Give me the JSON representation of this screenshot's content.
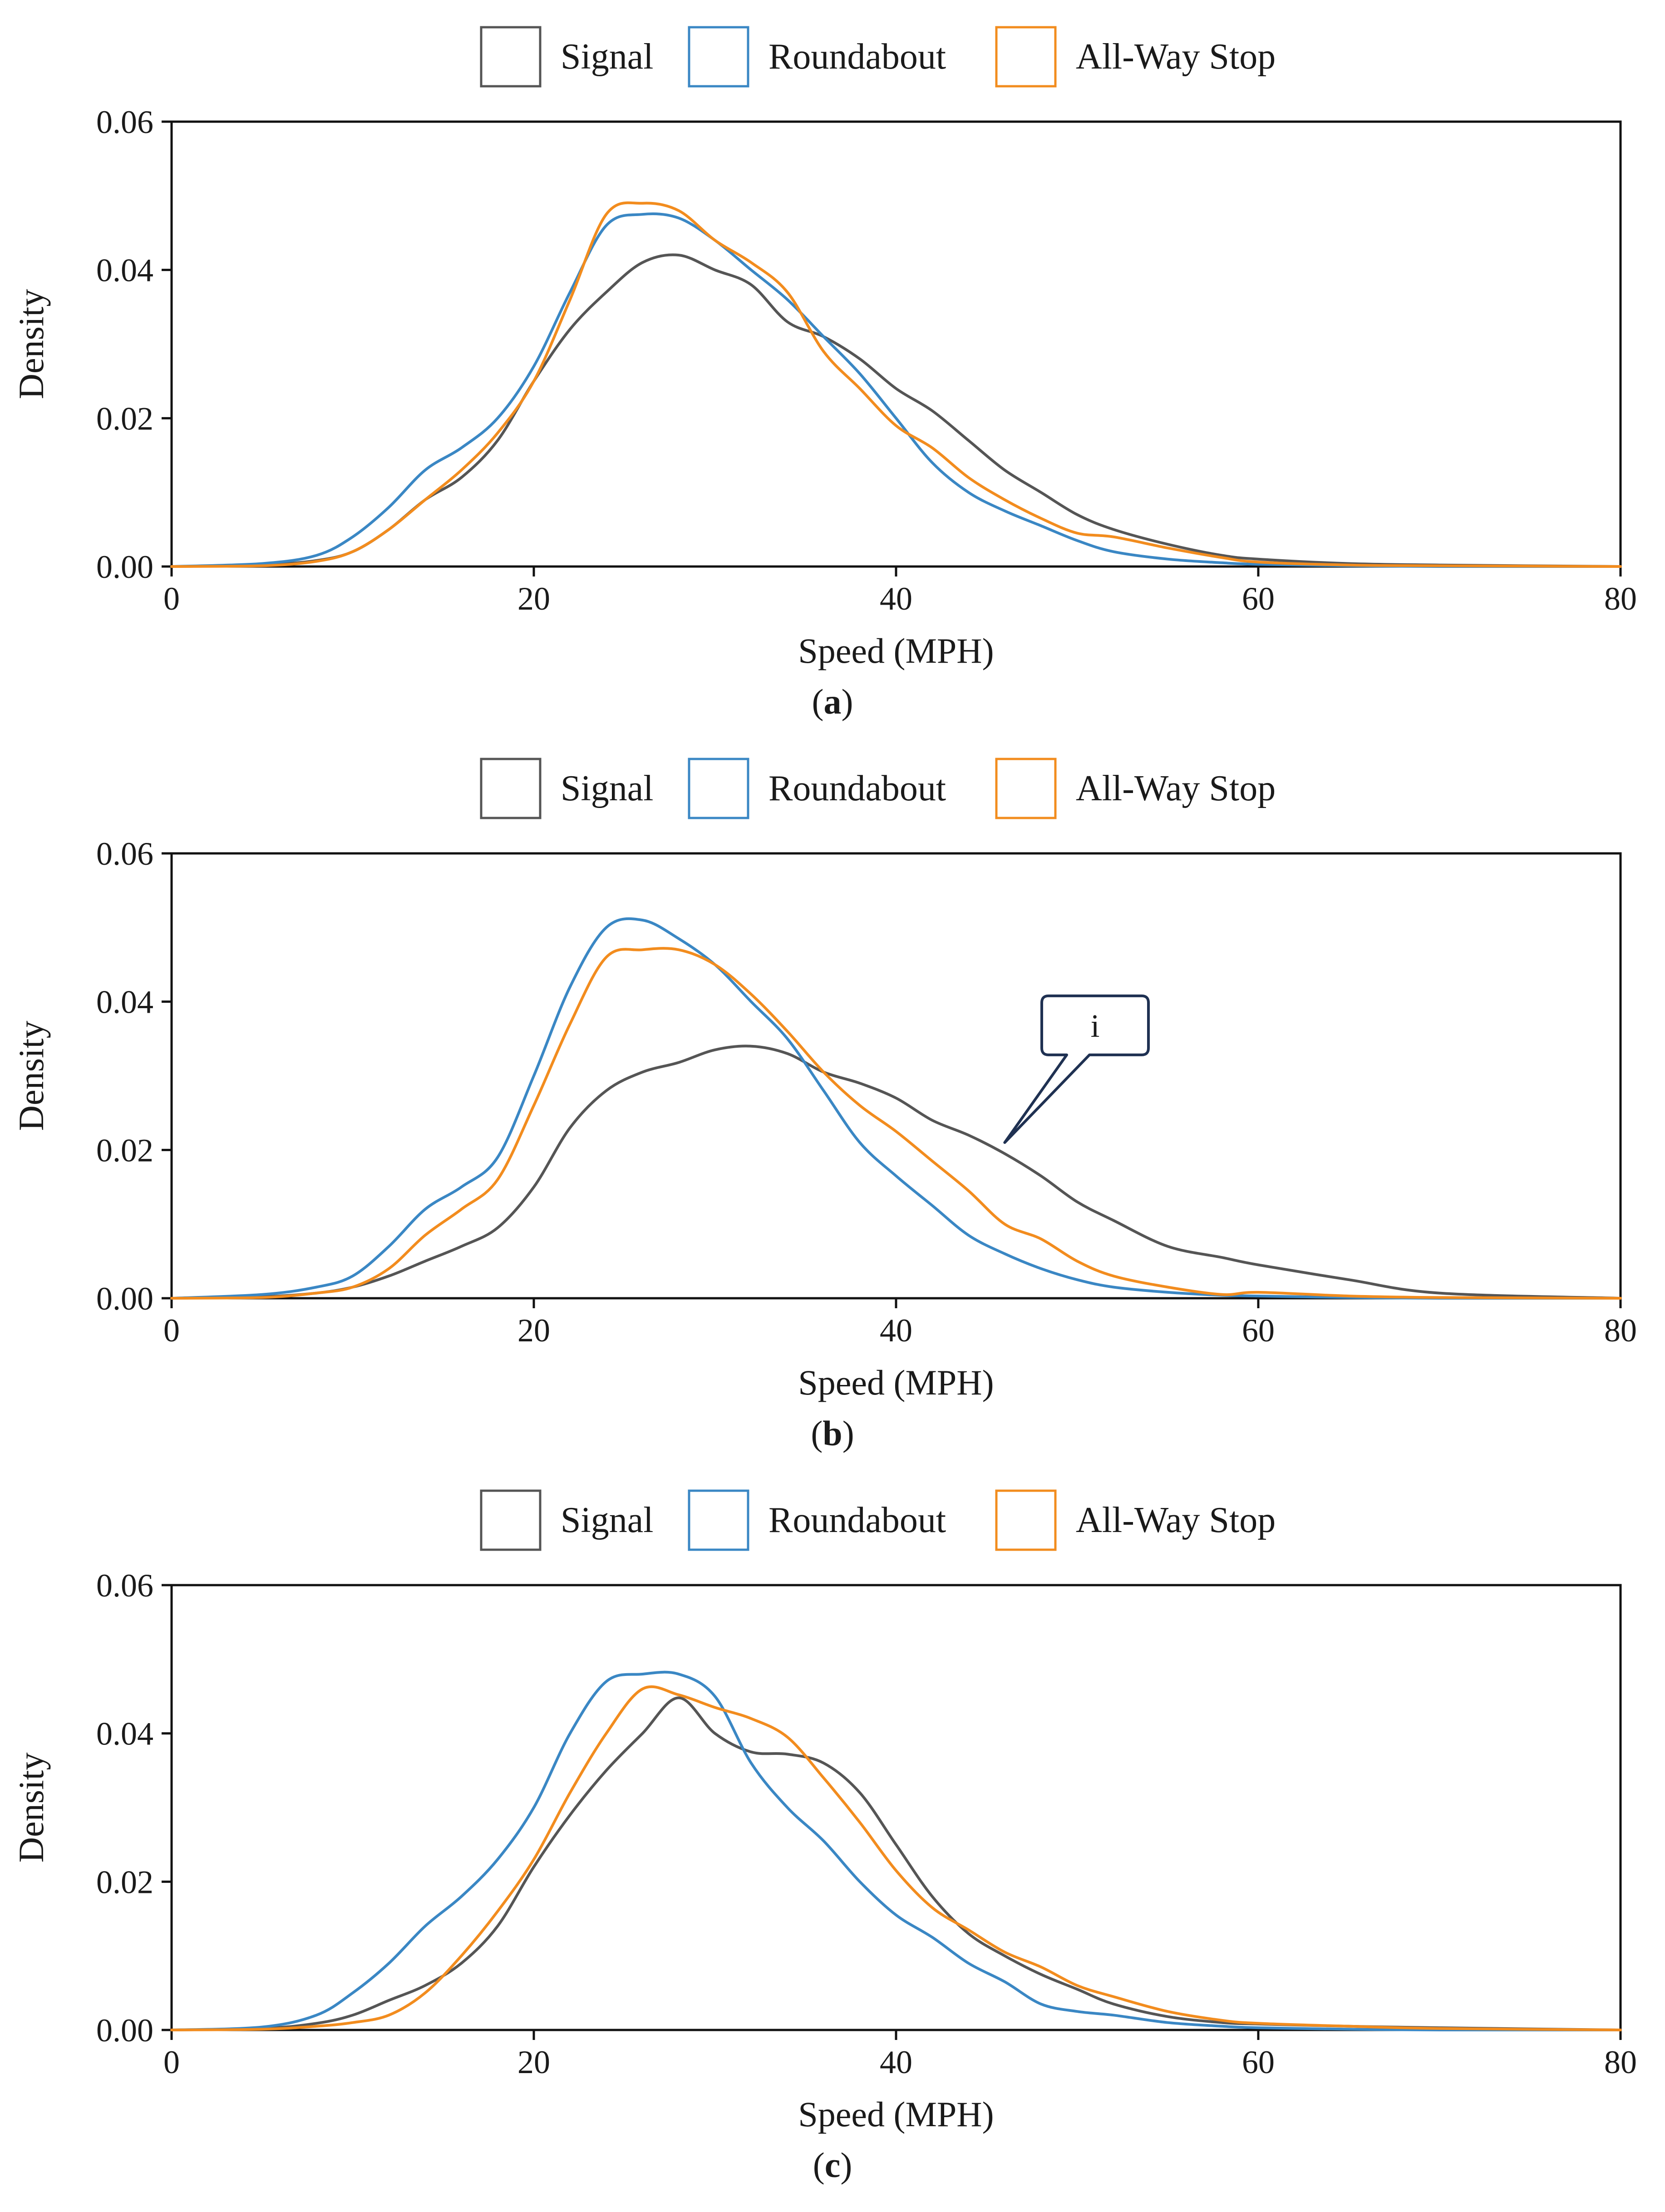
{
  "colors": {
    "Signal": "#555555",
    "Roundabout": "#3a87c4",
    "All-Way Stop": "#f28c1e",
    "axis": "#111111",
    "callout": "#1f3152"
  },
  "chart_data": [
    {
      "type": "line",
      "caption_letter": "a",
      "xlabel": "Speed (MPH)",
      "ylabel": "Density",
      "xlim": [
        0,
        80
      ],
      "ylim": [
        0,
        0.06
      ],
      "xticks": [
        "0",
        "20",
        "40",
        "60",
        "80"
      ],
      "yticks": [
        "0.00",
        "0.02",
        "0.04",
        "0.06"
      ],
      "legend": [
        "Signal",
        "Roundabout",
        "All-Way Stop"
      ],
      "legend_position": "top",
      "grid": false,
      "x": [
        0,
        5,
        8,
        10,
        12,
        14,
        16,
        18,
        20,
        22,
        24,
        26,
        28,
        30,
        32,
        34,
        36,
        38,
        40,
        42,
        44,
        46,
        48,
        50,
        52,
        55,
        58,
        60,
        65,
        70,
        80
      ],
      "series": [
        {
          "name": "Signal",
          "values": [
            0,
            0.0002,
            0.0008,
            0.002,
            0.005,
            0.009,
            0.012,
            0.017,
            0.025,
            0.032,
            0.037,
            0.041,
            0.042,
            0.04,
            0.038,
            0.033,
            0.031,
            0.028,
            0.024,
            0.021,
            0.017,
            0.013,
            0.01,
            0.007,
            0.005,
            0.003,
            0.0015,
            0.001,
            0.0004,
            0.0002,
            0
          ]
        },
        {
          "name": "Roundabout",
          "values": [
            0,
            0.0004,
            0.0015,
            0.004,
            0.008,
            0.013,
            0.016,
            0.02,
            0.027,
            0.037,
            0.046,
            0.0475,
            0.047,
            0.044,
            0.04,
            0.036,
            0.031,
            0.026,
            0.02,
            0.014,
            0.01,
            0.0075,
            0.0055,
            0.0035,
            0.002,
            0.001,
            0.0005,
            0.0003,
            0.0001,
            0,
            0
          ]
        },
        {
          "name": "All-Way Stop",
          "values": [
            0,
            0.0001,
            0.0007,
            0.002,
            0.005,
            0.009,
            0.013,
            0.018,
            0.025,
            0.036,
            0.0475,
            0.049,
            0.048,
            0.044,
            0.041,
            0.037,
            0.029,
            0.024,
            0.019,
            0.016,
            0.012,
            0.009,
            0.0065,
            0.0045,
            0.004,
            0.0025,
            0.0012,
            0.0006,
            0.0002,
            0.0001,
            0
          ]
        }
      ]
    },
    {
      "type": "line",
      "caption_letter": "b",
      "xlabel": "Speed (MPH)",
      "ylabel": "Density",
      "xlim": [
        0,
        80
      ],
      "ylim": [
        0,
        0.06
      ],
      "xticks": [
        "0",
        "20",
        "40",
        "60",
        "80"
      ],
      "yticks": [
        "0.00",
        "0.02",
        "0.04",
        "0.06"
      ],
      "legend": [
        "Signal",
        "Roundabout",
        "All-Way Stop"
      ],
      "legend_position": "top",
      "grid": false,
      "annotation": {
        "text": "i",
        "x": 46,
        "y": 0.021
      },
      "x": [
        0,
        5,
        8,
        10,
        12,
        14,
        16,
        18,
        20,
        22,
        24,
        26,
        28,
        30,
        32,
        34,
        36,
        38,
        40,
        42,
        44,
        46,
        48,
        50,
        52,
        55,
        58,
        60,
        65,
        70,
        80
      ],
      "series": [
        {
          "name": "Signal",
          "values": [
            0,
            0.0002,
            0.0007,
            0.0015,
            0.003,
            0.005,
            0.007,
            0.0095,
            0.015,
            0.023,
            0.028,
            0.0305,
            0.0318,
            0.0335,
            0.034,
            0.033,
            0.0305,
            0.029,
            0.027,
            0.024,
            0.022,
            0.0195,
            0.0165,
            0.013,
            0.0105,
            0.007,
            0.0055,
            0.0045,
            0.0025,
            0.0007,
            0
          ]
        },
        {
          "name": "Roundabout",
          "values": [
            0,
            0.0005,
            0.0015,
            0.003,
            0.007,
            0.012,
            0.015,
            0.019,
            0.03,
            0.042,
            0.05,
            0.051,
            0.0485,
            0.045,
            0.04,
            0.035,
            0.028,
            0.021,
            0.0165,
            0.0125,
            0.0085,
            0.006,
            0.004,
            0.0025,
            0.0015,
            0.0008,
            0.0004,
            0.0003,
            0.0001,
            0,
            0
          ]
        },
        {
          "name": "All-Way Stop",
          "values": [
            0,
            0.0001,
            0.0007,
            0.0015,
            0.004,
            0.0085,
            0.012,
            0.016,
            0.026,
            0.037,
            0.046,
            0.047,
            0.047,
            0.045,
            0.041,
            0.036,
            0.0305,
            0.026,
            0.0225,
            0.0185,
            0.0145,
            0.01,
            0.008,
            0.005,
            0.003,
            0.0015,
            0.0005,
            0.0008,
            0.0003,
            0.0001,
            0
          ]
        }
      ]
    },
    {
      "type": "line",
      "caption_letter": "c",
      "xlabel": "Speed (MPH)",
      "ylabel": "Density",
      "xlim": [
        0,
        80
      ],
      "ylim": [
        0,
        0.06
      ],
      "xticks": [
        "0",
        "20",
        "40",
        "60",
        "80"
      ],
      "yticks": [
        "0.00",
        "0.02",
        "0.04",
        "0.06"
      ],
      "legend": [
        "Signal",
        "Roundabout",
        "All-Way Stop"
      ],
      "legend_position": "top",
      "grid": false,
      "x": [
        0,
        5,
        8,
        10,
        12,
        14,
        16,
        18,
        20,
        22,
        24,
        26,
        28,
        30,
        32,
        34,
        36,
        38,
        40,
        42,
        44,
        46,
        48,
        50,
        52,
        55,
        58,
        60,
        65,
        70,
        80
      ],
      "series": [
        {
          "name": "Signal",
          "values": [
            0,
            0.0002,
            0.0009,
            0.002,
            0.004,
            0.006,
            0.009,
            0.014,
            0.022,
            0.029,
            0.035,
            0.04,
            0.0448,
            0.04,
            0.0375,
            0.0372,
            0.036,
            0.032,
            0.025,
            0.018,
            0.013,
            0.01,
            0.0075,
            0.0055,
            0.0035,
            0.0018,
            0.001,
            0.0008,
            0.0005,
            0.0003,
            0
          ]
        },
        {
          "name": "Roundabout",
          "values": [
            0,
            0.0004,
            0.002,
            0.005,
            0.009,
            0.014,
            0.018,
            0.023,
            0.03,
            0.04,
            0.047,
            0.048,
            0.048,
            0.045,
            0.036,
            0.03,
            0.0255,
            0.02,
            0.0155,
            0.0125,
            0.009,
            0.0065,
            0.0035,
            0.0025,
            0.002,
            0.001,
            0.0005,
            0.0003,
            0.0001,
            0,
            0
          ]
        },
        {
          "name": "All-Way Stop",
          "values": [
            0,
            0.0001,
            0.0005,
            0.001,
            0.002,
            0.005,
            0.01,
            0.016,
            0.023,
            0.032,
            0.04,
            0.046,
            0.0452,
            0.0435,
            0.042,
            0.0395,
            0.034,
            0.028,
            0.0215,
            0.0165,
            0.0135,
            0.0105,
            0.0085,
            0.006,
            0.0045,
            0.0025,
            0.0013,
            0.0009,
            0.0005,
            0.0002,
            0
          ]
        }
      ]
    }
  ]
}
